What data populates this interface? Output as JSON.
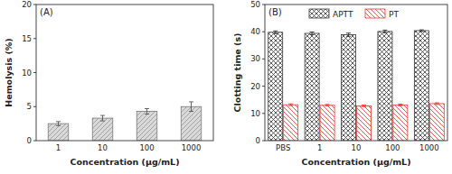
{
  "chart_data": [
    {
      "type": "bar",
      "title": "(A)",
      "x_label": "Concentration (μg/mL)",
      "y_label": "Hemolysis (%)",
      "categories": [
        "1",
        "10",
        "100",
        "1000"
      ],
      "values": [
        2.5,
        3.3,
        4.3,
        5.0
      ],
      "errors": [
        0.3,
        0.4,
        0.4,
        0.7
      ],
      "color": "#d9d9d9",
      "ylim": [
        0,
        20
      ],
      "yticks": [
        0,
        5,
        10,
        15,
        20
      ]
    },
    {
      "type": "bar",
      "title": "(B)",
      "x_label": "Concentration (μg/mL)",
      "y_label": "Clotting time (s)",
      "categories": [
        "PBS",
        "1",
        "10",
        "100",
        "1000"
      ],
      "series": [
        {
          "name": "APTT",
          "color": "#333333",
          "values": [
            39.8,
            39.4,
            38.9,
            40.1,
            40.4
          ],
          "errors": [
            0.5,
            0.5,
            0.6,
            0.5,
            0.3
          ]
        },
        {
          "name": "PT",
          "color": "#e8382a",
          "values": [
            13.2,
            13.0,
            12.8,
            13.1,
            13.6
          ],
          "errors": [
            0.3,
            0.3,
            0.3,
            0.3,
            0.3
          ]
        }
      ],
      "ylim": [
        0,
        50
      ],
      "yticks": [
        0,
        10,
        20,
        30,
        40,
        50
      ],
      "legend": "top"
    }
  ]
}
